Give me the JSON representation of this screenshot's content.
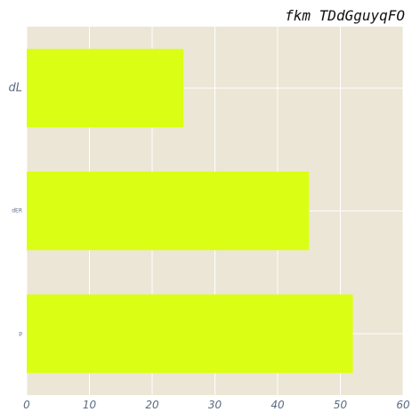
{
  "chart_data": {
    "type": "bar",
    "orientation": "horizontal",
    "title": "fkm TDdGguyqFO",
    "categories": [
      "dL",
      "dER",
      "p"
    ],
    "values": [
      25,
      45,
      52
    ],
    "xlim": [
      0,
      60
    ],
    "xticks": [
      "0",
      "10",
      "20",
      "30",
      "40",
      "50",
      "60"
    ],
    "grid": true,
    "colors": {
      "bar": "#dbff14",
      "plot_background": "#ece6d6",
      "grid": "#ffffff",
      "tick_label": "#5b6b82"
    }
  }
}
